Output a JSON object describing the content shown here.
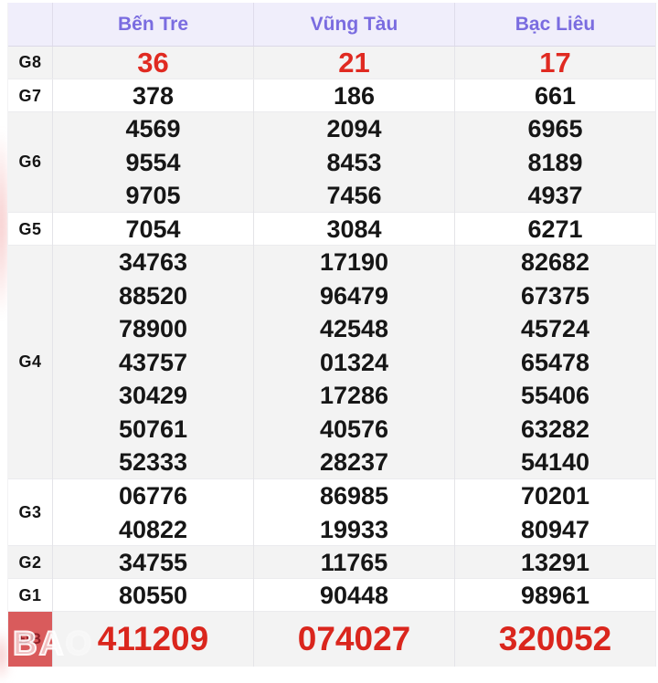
{
  "header": {
    "provinces": [
      "Bến Tre",
      "Vũng Tàu",
      "Bạc Liêu"
    ]
  },
  "prizes": [
    {
      "label": "G8",
      "style": "red",
      "columns": [
        [
          "36"
        ],
        [
          "21"
        ],
        [
          "17"
        ]
      ]
    },
    {
      "label": "G7",
      "style": "normal",
      "columns": [
        [
          "378"
        ],
        [
          "186"
        ],
        [
          "661"
        ]
      ]
    },
    {
      "label": "G6",
      "style": "normal",
      "columns": [
        [
          "4569",
          "9554",
          "9705"
        ],
        [
          "2094",
          "8453",
          "7456"
        ],
        [
          "6965",
          "8189",
          "4937"
        ]
      ]
    },
    {
      "label": "G5",
      "style": "normal",
      "columns": [
        [
          "7054"
        ],
        [
          "3084"
        ],
        [
          "6271"
        ]
      ]
    },
    {
      "label": "G4",
      "style": "normal",
      "columns": [
        [
          "34763",
          "88520",
          "78900",
          "43757",
          "30429",
          "50761",
          "52333"
        ],
        [
          "17190",
          "96479",
          "42548",
          "01324",
          "17286",
          "40576",
          "28237"
        ],
        [
          "82682",
          "67375",
          "45724",
          "65478",
          "55406",
          "63282",
          "54140"
        ]
      ]
    },
    {
      "label": "G3",
      "style": "normal",
      "columns": [
        [
          "06776",
          "40822"
        ],
        [
          "86985",
          "19933"
        ],
        [
          "70201",
          "80947"
        ]
      ]
    },
    {
      "label": "G2",
      "style": "normal",
      "columns": [
        [
          "34755"
        ],
        [
          "11765"
        ],
        [
          "13291"
        ]
      ]
    },
    {
      "label": "G1",
      "style": "normal",
      "columns": [
        [
          "80550"
        ],
        [
          "90448"
        ],
        [
          "98961"
        ]
      ]
    },
    {
      "label": "ĐB",
      "style": "special",
      "columns": [
        [
          "411209"
        ],
        [
          "074027"
        ],
        [
          "320052"
        ]
      ]
    }
  ],
  "watermark": {
    "text_strong": "BA",
    "text_faint": "O"
  },
  "colors": {
    "header_text": "#7a6ce0",
    "header_bg": "#f0eefb",
    "red_number": "#e02a21",
    "special_label_bg": "#d95b5c",
    "special_label_text": "#8c1f27",
    "stripe_gray": "#f3f3f3"
  }
}
